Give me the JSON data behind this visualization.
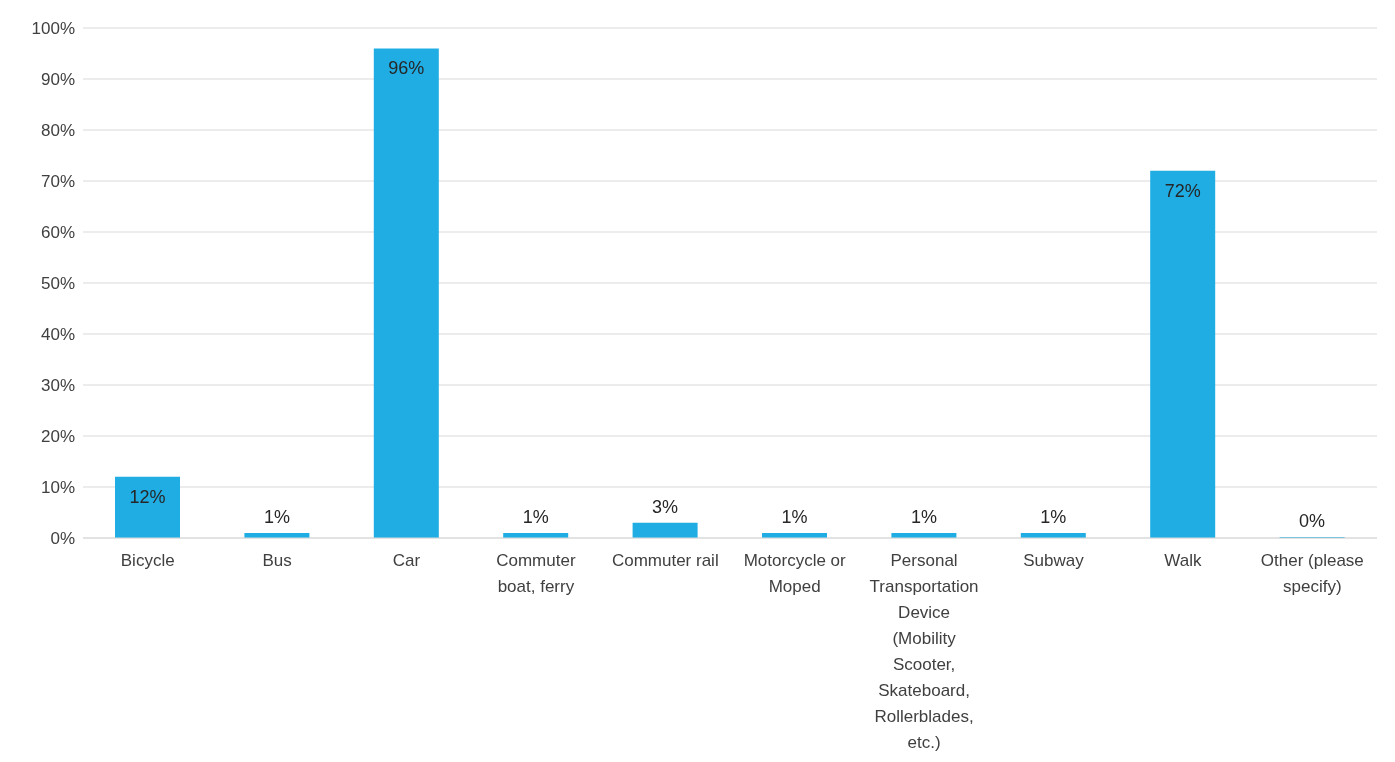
{
  "chart_data": {
    "type": "bar",
    "categories": [
      "Bicycle",
      "Bus",
      "Car",
      "Commuter boat, ferry",
      "Commuter rail",
      "Motorcycle or Moped",
      "Personal Transportation Device (Mobility Scooter, Skateboard, Rollerblades, etc.)",
      "Subway",
      "Walk",
      "Other (please specify)"
    ],
    "values": [
      12,
      1,
      96,
      1,
      3,
      1,
      1,
      1,
      72,
      0
    ],
    "value_labels": [
      "12%",
      "1%",
      "96%",
      "1%",
      "3%",
      "1%",
      "1%",
      "1%",
      "72%",
      "0%"
    ],
    "color": "#1fade4",
    "ylim": [
      0,
      100
    ],
    "yticks": [
      {
        "value": 0,
        "label": "0%"
      },
      {
        "value": 10,
        "label": "10%"
      },
      {
        "value": 20,
        "label": "20%"
      },
      {
        "value": 30,
        "label": "30%"
      },
      {
        "value": 40,
        "label": "40%"
      },
      {
        "value": 50,
        "label": "50%"
      },
      {
        "value": 60,
        "label": "60%"
      },
      {
        "value": 70,
        "label": "70%"
      },
      {
        "value": 80,
        "label": "80%"
      },
      {
        "value": 90,
        "label": "90%"
      },
      {
        "value": 100,
        "label": "100%"
      }
    ],
    "grid": "y"
  }
}
